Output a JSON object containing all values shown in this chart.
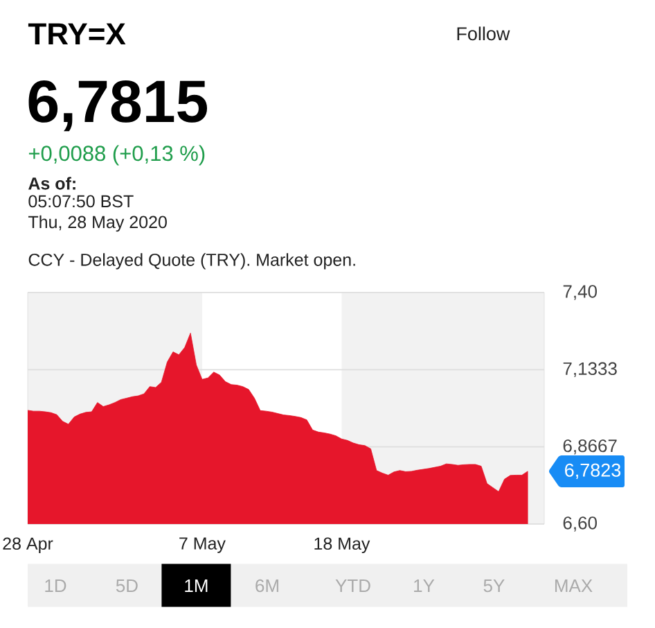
{
  "chart_data": {
    "type": "area",
    "title": "TRY=X",
    "subtitle": "CCY - Delayed Quote (TRY). Market open.",
    "categories": [
      "28 Apr",
      null,
      null,
      null,
      null,
      null,
      null,
      null,
      null,
      null,
      null,
      null,
      null,
      null,
      null,
      null,
      null,
      null,
      null,
      null,
      null,
      null,
      null,
      null,
      null,
      null,
      null,
      null,
      null,
      null,
      "7 May",
      null,
      null,
      null,
      null,
      null,
      null,
      null,
      null,
      null,
      null,
      null,
      null,
      null,
      null,
      null,
      null,
      null,
      null,
      null,
      null,
      null,
      null,
      null,
      "18 May",
      null,
      null,
      null,
      null,
      null,
      null,
      null,
      null,
      null,
      null,
      null,
      null,
      null,
      null,
      null,
      null,
      null,
      null,
      null,
      null,
      null,
      null,
      null,
      null,
      null,
      null,
      null,
      null,
      null,
      null,
      null,
      null
    ],
    "values": [
      6.993,
      6.99,
      6.99,
      6.988,
      6.985,
      6.978,
      6.955,
      6.945,
      6.97,
      6.98,
      6.986,
      6.988,
      7.02,
      7.006,
      7.012,
      7.02,
      7.03,
      7.035,
      7.04,
      7.043,
      7.05,
      7.075,
      7.072,
      7.09,
      7.16,
      7.195,
      7.185,
      7.21,
      7.26,
      7.15,
      7.1,
      7.105,
      7.125,
      7.115,
      7.092,
      7.082,
      7.08,
      7.075,
      7.065,
      7.035,
      6.992,
      6.99,
      6.987,
      6.982,
      6.977,
      6.975,
      6.972,
      6.968,
      6.96,
      6.925,
      6.918,
      6.915,
      6.911,
      6.905,
      6.894,
      6.889,
      6.88,
      6.874,
      6.871,
      6.86,
      6.785,
      6.776,
      6.769,
      6.78,
      6.785,
      6.781,
      6.782,
      6.786,
      6.789,
      6.792,
      6.796,
      6.8,
      6.808,
      6.806,
      6.803,
      6.805,
      6.806,
      6.806,
      6.8,
      6.74,
      6.726,
      6.712,
      6.755,
      6.768,
      6.769,
      6.769,
      6.7823
    ],
    "color": "#e6162b",
    "ylim": [
      6.6,
      7.4
    ],
    "yticks": [
      {
        "value": 7.4,
        "label": "7,40"
      },
      {
        "value": 7.1333,
        "label": "7,1333"
      },
      {
        "value": 6.8667,
        "label": "6,8667"
      },
      {
        "value": 6.6,
        "label": "6,60"
      }
    ],
    "grid": "y",
    "bands": [
      {
        "axis": "x",
        "from": "7 May",
        "to": "18 May",
        "color": "#ffffff"
      }
    ],
    "annotations": [
      "6,7815",
      "+0,0088 (+0,13 %)",
      "As of:",
      "05:07:50 BST",
      "Thu, 28 May 2020",
      "Follow",
      "6,7823",
      "1D",
      "5D",
      "1M",
      "6M",
      "YTD",
      "1Y",
      "5Y",
      "MAX"
    ]
  }
}
